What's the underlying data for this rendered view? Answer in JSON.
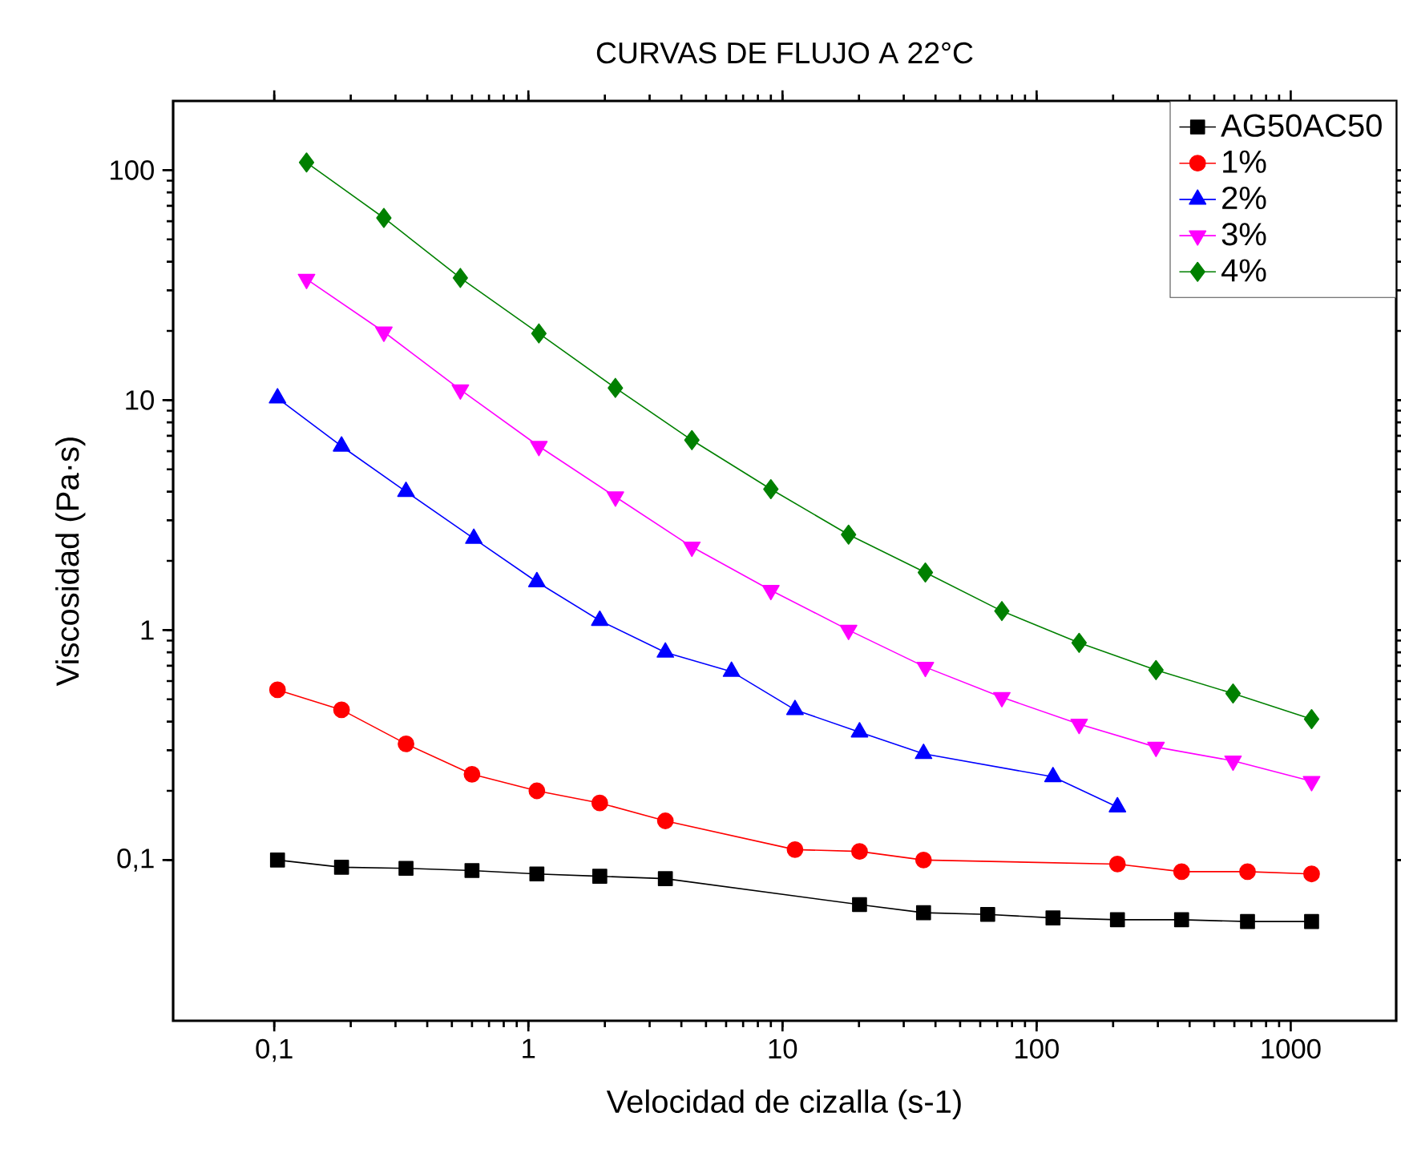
{
  "chart_data": {
    "type": "line",
    "title": "CURVAS DE FLUJO A 22°C",
    "xlabel": "Velocidad de cizalla (s-1)",
    "ylabel": "Viscosidad (Pa·s)",
    "log": "xy",
    "xlim": [
      0.04,
      2600
    ],
    "ylim": [
      0.02,
      200
    ],
    "xticks": [
      {
        "value": 0.1,
        "label": "0,1"
      },
      1,
      10,
      100,
      1000
    ],
    "yticks": [
      {
        "value": 0.1,
        "label": "0,1"
      },
      1,
      10,
      100
    ],
    "legend": "top right",
    "line_style": "solid",
    "series": [
      {
        "name": "AG50AC50",
        "color": "#000000",
        "marker": "square",
        "x": [
          0.103,
          0.184,
          0.33,
          0.6,
          1.08,
          1.91,
          3.46,
          20.1,
          35.9,
          64.2,
          116,
          208,
          372,
          676,
          1208
        ],
        "values": [
          0.1,
          0.093,
          0.092,
          0.09,
          0.087,
          0.085,
          0.083,
          0.064,
          0.059,
          0.058,
          0.056,
          0.055,
          0.055,
          0.054,
          0.054
        ]
      },
      {
        "name": "1%",
        "color": "#ff0000",
        "marker": "circle",
        "x": [
          0.103,
          0.184,
          0.33,
          0.6,
          1.08,
          1.91,
          3.46,
          11.2,
          20.1,
          35.9,
          208,
          372,
          676,
          1208
        ],
        "values": [
          0.55,
          0.45,
          0.32,
          0.236,
          0.2,
          0.177,
          0.148,
          0.111,
          0.109,
          0.1,
          0.096,
          0.089,
          0.089,
          0.087
        ]
      },
      {
        "name": "2%",
        "color": "#0000ff",
        "marker": "triangle",
        "x": [
          0.103,
          0.184,
          0.33,
          0.61,
          1.08,
          1.91,
          3.46,
          6.3,
          11.2,
          20.1,
          35.9,
          116,
          208
        ],
        "values": [
          10.2,
          6.3,
          4.0,
          2.5,
          1.62,
          1.1,
          0.8,
          0.66,
          0.45,
          0.36,
          0.29,
          0.23,
          0.17
        ]
      },
      {
        "name": "3%",
        "color": "#ff00ff",
        "marker": "triangle-down",
        "x": [
          0.134,
          0.27,
          0.54,
          1.1,
          2.2,
          4.4,
          9.0,
          18.2,
          36.5,
          73,
          147,
          295,
          593,
          1208
        ],
        "values": [
          33.6,
          19.8,
          11.1,
          6.3,
          3.8,
          2.3,
          1.49,
          1.0,
          0.69,
          0.51,
          0.39,
          0.31,
          0.27,
          0.22
        ]
      },
      {
        "name": "4%",
        "color": "#008000",
        "marker": "diamond",
        "x": [
          0.134,
          0.27,
          0.54,
          1.1,
          2.2,
          4.4,
          9.0,
          18.2,
          36.5,
          73,
          147,
          295,
          593,
          1208
        ],
        "values": [
          108,
          62,
          34,
          19.5,
          11.3,
          6.7,
          4.1,
          2.6,
          1.78,
          1.21,
          0.88,
          0.67,
          0.53,
          0.41
        ]
      }
    ]
  }
}
